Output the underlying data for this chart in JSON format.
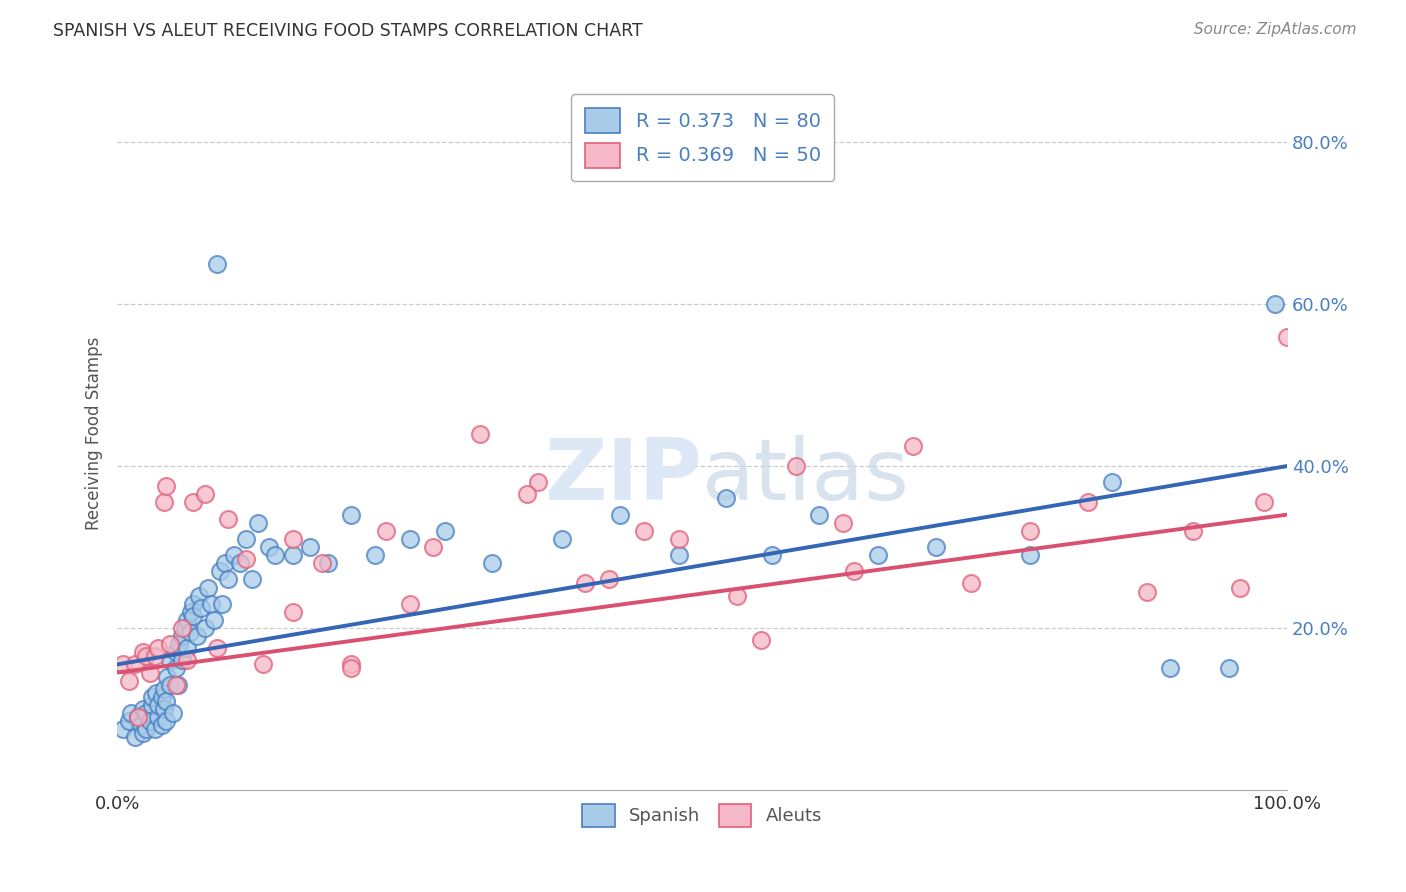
{
  "title": "SPANISH VS ALEUT RECEIVING FOOD STAMPS CORRELATION CHART",
  "source": "Source: ZipAtlas.com",
  "ylabel": "Receiving Food Stamps",
  "xlim": [
    0.0,
    1.0
  ],
  "ylim": [
    0.0,
    0.88
  ],
  "xticks": [
    0.0,
    0.25,
    0.5,
    0.75,
    1.0
  ],
  "xticklabels": [
    "0.0%",
    "",
    "",
    "",
    "100.0%"
  ],
  "ytick_positions": [
    0.2,
    0.4,
    0.6,
    0.8
  ],
  "ytick_labels": [
    "20.0%",
    "40.0%",
    "60.0%",
    "80.0%"
  ],
  "spanish_R": 0.373,
  "spanish_N": 80,
  "aleut_R": 0.369,
  "aleut_N": 50,
  "spanish_color": "#a8cce8",
  "aleut_color": "#f4b8c8",
  "spanish_edge_color": "#4a7fc1",
  "aleut_edge_color": "#e0607a",
  "spanish_line_color": "#3565b5",
  "aleut_line_color": "#d95070",
  "label_color": "#4a7fc1",
  "watermark_color": "#dce8f5",
  "spanish_x": [
    0.005,
    0.01,
    0.012,
    0.015,
    0.018,
    0.02,
    0.022,
    0.022,
    0.025,
    0.025,
    0.028,
    0.03,
    0.03,
    0.032,
    0.033,
    0.035,
    0.035,
    0.038,
    0.038,
    0.04,
    0.04,
    0.042,
    0.042,
    0.043,
    0.045,
    0.045,
    0.048,
    0.05,
    0.05,
    0.052,
    0.053,
    0.055,
    0.055,
    0.058,
    0.06,
    0.06,
    0.062,
    0.063,
    0.065,
    0.065,
    0.068,
    0.07,
    0.072,
    0.075,
    0.078,
    0.08,
    0.083,
    0.085,
    0.088,
    0.09,
    0.092,
    0.095,
    0.1,
    0.105,
    0.11,
    0.115,
    0.12,
    0.13,
    0.135,
    0.15,
    0.165,
    0.18,
    0.2,
    0.22,
    0.25,
    0.28,
    0.32,
    0.38,
    0.43,
    0.48,
    0.52,
    0.56,
    0.6,
    0.65,
    0.7,
    0.78,
    0.85,
    0.9,
    0.95,
    0.99
  ],
  "spanish_y": [
    0.075,
    0.085,
    0.095,
    0.065,
    0.09,
    0.08,
    0.1,
    0.07,
    0.095,
    0.075,
    0.085,
    0.105,
    0.115,
    0.075,
    0.12,
    0.09,
    0.105,
    0.08,
    0.115,
    0.1,
    0.125,
    0.085,
    0.11,
    0.14,
    0.13,
    0.16,
    0.095,
    0.15,
    0.17,
    0.13,
    0.18,
    0.16,
    0.19,
    0.2,
    0.175,
    0.21,
    0.195,
    0.22,
    0.23,
    0.215,
    0.19,
    0.24,
    0.225,
    0.2,
    0.25,
    0.23,
    0.21,
    0.65,
    0.27,
    0.23,
    0.28,
    0.26,
    0.29,
    0.28,
    0.31,
    0.26,
    0.33,
    0.3,
    0.29,
    0.29,
    0.3,
    0.28,
    0.34,
    0.29,
    0.31,
    0.32,
    0.28,
    0.31,
    0.34,
    0.29,
    0.36,
    0.29,
    0.34,
    0.29,
    0.3,
    0.29,
    0.38,
    0.15,
    0.15,
    0.6
  ],
  "aleut_x": [
    0.005,
    0.01,
    0.015,
    0.018,
    0.022,
    0.025,
    0.028,
    0.032,
    0.035,
    0.04,
    0.042,
    0.045,
    0.05,
    0.055,
    0.06,
    0.065,
    0.075,
    0.085,
    0.095,
    0.11,
    0.125,
    0.15,
    0.175,
    0.2,
    0.23,
    0.27,
    0.31,
    0.36,
    0.42,
    0.48,
    0.53,
    0.58,
    0.63,
    0.68,
    0.73,
    0.78,
    0.83,
    0.88,
    0.92,
    0.96,
    0.98,
    1.0,
    0.55,
    0.62,
    0.35,
    0.4,
    0.45,
    0.15,
    0.2,
    0.25
  ],
  "aleut_y": [
    0.155,
    0.135,
    0.155,
    0.09,
    0.17,
    0.165,
    0.145,
    0.165,
    0.175,
    0.355,
    0.375,
    0.18,
    0.13,
    0.2,
    0.16,
    0.355,
    0.365,
    0.175,
    0.335,
    0.285,
    0.155,
    0.31,
    0.28,
    0.155,
    0.32,
    0.3,
    0.44,
    0.38,
    0.26,
    0.31,
    0.24,
    0.4,
    0.27,
    0.425,
    0.255,
    0.32,
    0.355,
    0.245,
    0.32,
    0.25,
    0.355,
    0.56,
    0.185,
    0.33,
    0.365,
    0.255,
    0.32,
    0.22,
    0.15,
    0.23
  ],
  "legend_line1": "R = 0.373   N = 80",
  "legend_line2": "R = 0.369   N = 50",
  "bottom_legend_labels": [
    "Spanish",
    "Aleuts"
  ]
}
